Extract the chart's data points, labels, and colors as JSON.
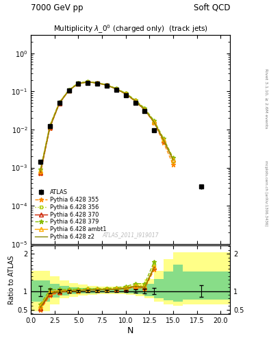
{
  "title_top_left": "7000 GeV pp",
  "title_top_right": "Soft QCD",
  "main_title": "Multiplicity $\\lambda\\_0^0$ (charged only)  (track jets)",
  "right_label1": "Rivet 3.1.10, ≥ 2.6M events",
  "right_label2": "mcplots.cern.ch [arXiv:1306.3436]",
  "watermark": "ATLAS_2011_I919017",
  "xlabel": "N",
  "ylabel_ratio": "Ratio to ATLAS",
  "ylim_main": [
    1e-05,
    3.0
  ],
  "xlim": [
    0,
    21
  ],
  "atlas_x": [
    1,
    2,
    3,
    4,
    5,
    6,
    7,
    8,
    9,
    10,
    11,
    12,
    13,
    18
  ],
  "atlas_y": [
    0.0014,
    0.0125,
    0.05,
    0.105,
    0.16,
    0.17,
    0.16,
    0.14,
    0.11,
    0.08,
    0.05,
    0.03,
    0.0095,
    0.00032
  ],
  "atlas_yerr": [
    0.0002,
    0.0008,
    0.002,
    0.004,
    0.005,
    0.005,
    0.005,
    0.004,
    0.003,
    0.002,
    0.002,
    0.002,
    0.0008,
    5e-05
  ],
  "p355_x": [
    1,
    2,
    3,
    4,
    5,
    6,
    7,
    8,
    9,
    10,
    11,
    12,
    13,
    14,
    15
  ],
  "p355_y": [
    0.0007,
    0.011,
    0.048,
    0.105,
    0.16,
    0.175,
    0.165,
    0.145,
    0.115,
    0.085,
    0.055,
    0.032,
    0.015,
    0.0045,
    0.0012
  ],
  "p355_color": "#ff8800",
  "p355_label": "Pythia 6.428 355",
  "p355_ls": "--",
  "p355_marker": "*",
  "p356_x": [
    1,
    2,
    3,
    4,
    5,
    6,
    7,
    8,
    9,
    10,
    11,
    12,
    13,
    14,
    15
  ],
  "p356_y": [
    0.0008,
    0.012,
    0.05,
    0.108,
    0.165,
    0.178,
    0.168,
    0.148,
    0.118,
    0.088,
    0.058,
    0.034,
    0.016,
    0.005,
    0.0015
  ],
  "p356_color": "#aacc00",
  "p356_label": "Pythia 6.428 356",
  "p356_ls": ":",
  "p356_marker": "s",
  "p370_x": [
    1,
    2,
    3,
    4,
    5,
    6,
    7,
    8,
    9,
    10,
    11,
    12,
    13,
    14,
    15
  ],
  "p370_y": [
    0.00075,
    0.0115,
    0.049,
    0.106,
    0.162,
    0.176,
    0.166,
    0.146,
    0.116,
    0.086,
    0.056,
    0.033,
    0.0155,
    0.0052,
    0.0016
  ],
  "p370_color": "#cc2200",
  "p370_label": "Pythia 6.428 370",
  "p370_ls": "-",
  "p370_marker": "^",
  "p379_x": [
    1,
    2,
    3,
    4,
    5,
    6,
    7,
    8,
    9,
    10,
    11,
    12,
    13,
    14,
    15
  ],
  "p379_y": [
    0.0009,
    0.013,
    0.052,
    0.11,
    0.168,
    0.18,
    0.17,
    0.15,
    0.12,
    0.09,
    0.06,
    0.036,
    0.017,
    0.0058,
    0.0018
  ],
  "p379_color": "#88bb00",
  "p379_label": "Pythia 6.428 379",
  "p379_ls": "--",
  "p379_marker": "*",
  "pambt1_x": [
    1,
    2,
    3,
    4,
    5,
    6,
    7,
    8,
    9,
    10,
    11,
    12,
    13,
    14,
    15
  ],
  "pambt1_y": [
    0.00085,
    0.0122,
    0.051,
    0.107,
    0.163,
    0.177,
    0.167,
    0.147,
    0.117,
    0.087,
    0.057,
    0.0335,
    0.0158,
    0.0054,
    0.00165
  ],
  "pambt1_color": "#ffaa00",
  "pambt1_label": "Pythia 6.428 ambt1",
  "pambt1_ls": "-",
  "pambt1_marker": "^",
  "pz2_x": [
    1,
    2,
    3,
    4,
    5,
    6,
    7,
    8,
    9,
    10,
    11,
    12,
    13,
    14,
    15
  ],
  "pz2_y": [
    0.0008,
    0.0118,
    0.0495,
    0.1065,
    0.161,
    0.176,
    0.166,
    0.146,
    0.116,
    0.0865,
    0.0565,
    0.0332,
    0.0156,
    0.0053,
    0.00162
  ],
  "pz2_color": "#888800",
  "pz2_label": "Pythia 6.428 z2",
  "pz2_ls": "-",
  "pz2_marker": null,
  "ratio_band_edges": [
    0,
    1,
    2,
    3,
    4,
    5,
    6,
    7,
    8,
    9,
    10,
    11,
    12,
    13,
    14,
    15,
    16,
    21
  ],
  "yellow_lo": [
    0.45,
    0.45,
    0.65,
    0.8,
    0.85,
    0.88,
    0.9,
    0.91,
    0.91,
    0.91,
    0.9,
    0.86,
    0.8,
    0.72,
    0.65,
    0.6,
    0.65,
    0.65
  ],
  "yellow_hi": [
    1.55,
    1.55,
    1.4,
    1.28,
    1.22,
    1.18,
    1.14,
    1.12,
    1.12,
    1.12,
    1.14,
    1.22,
    1.32,
    1.55,
    1.85,
    2.05,
    2.05,
    2.05
  ],
  "green_lo": [
    0.72,
    0.72,
    0.82,
    0.88,
    0.91,
    0.93,
    0.94,
    0.95,
    0.95,
    0.95,
    0.94,
    0.91,
    0.86,
    0.8,
    0.75,
    0.72,
    0.78,
    0.78
  ],
  "green_hi": [
    1.28,
    1.28,
    1.2,
    1.14,
    1.11,
    1.09,
    1.08,
    1.07,
    1.07,
    1.07,
    1.08,
    1.13,
    1.2,
    1.32,
    1.52,
    1.72,
    1.52,
    1.52
  ]
}
